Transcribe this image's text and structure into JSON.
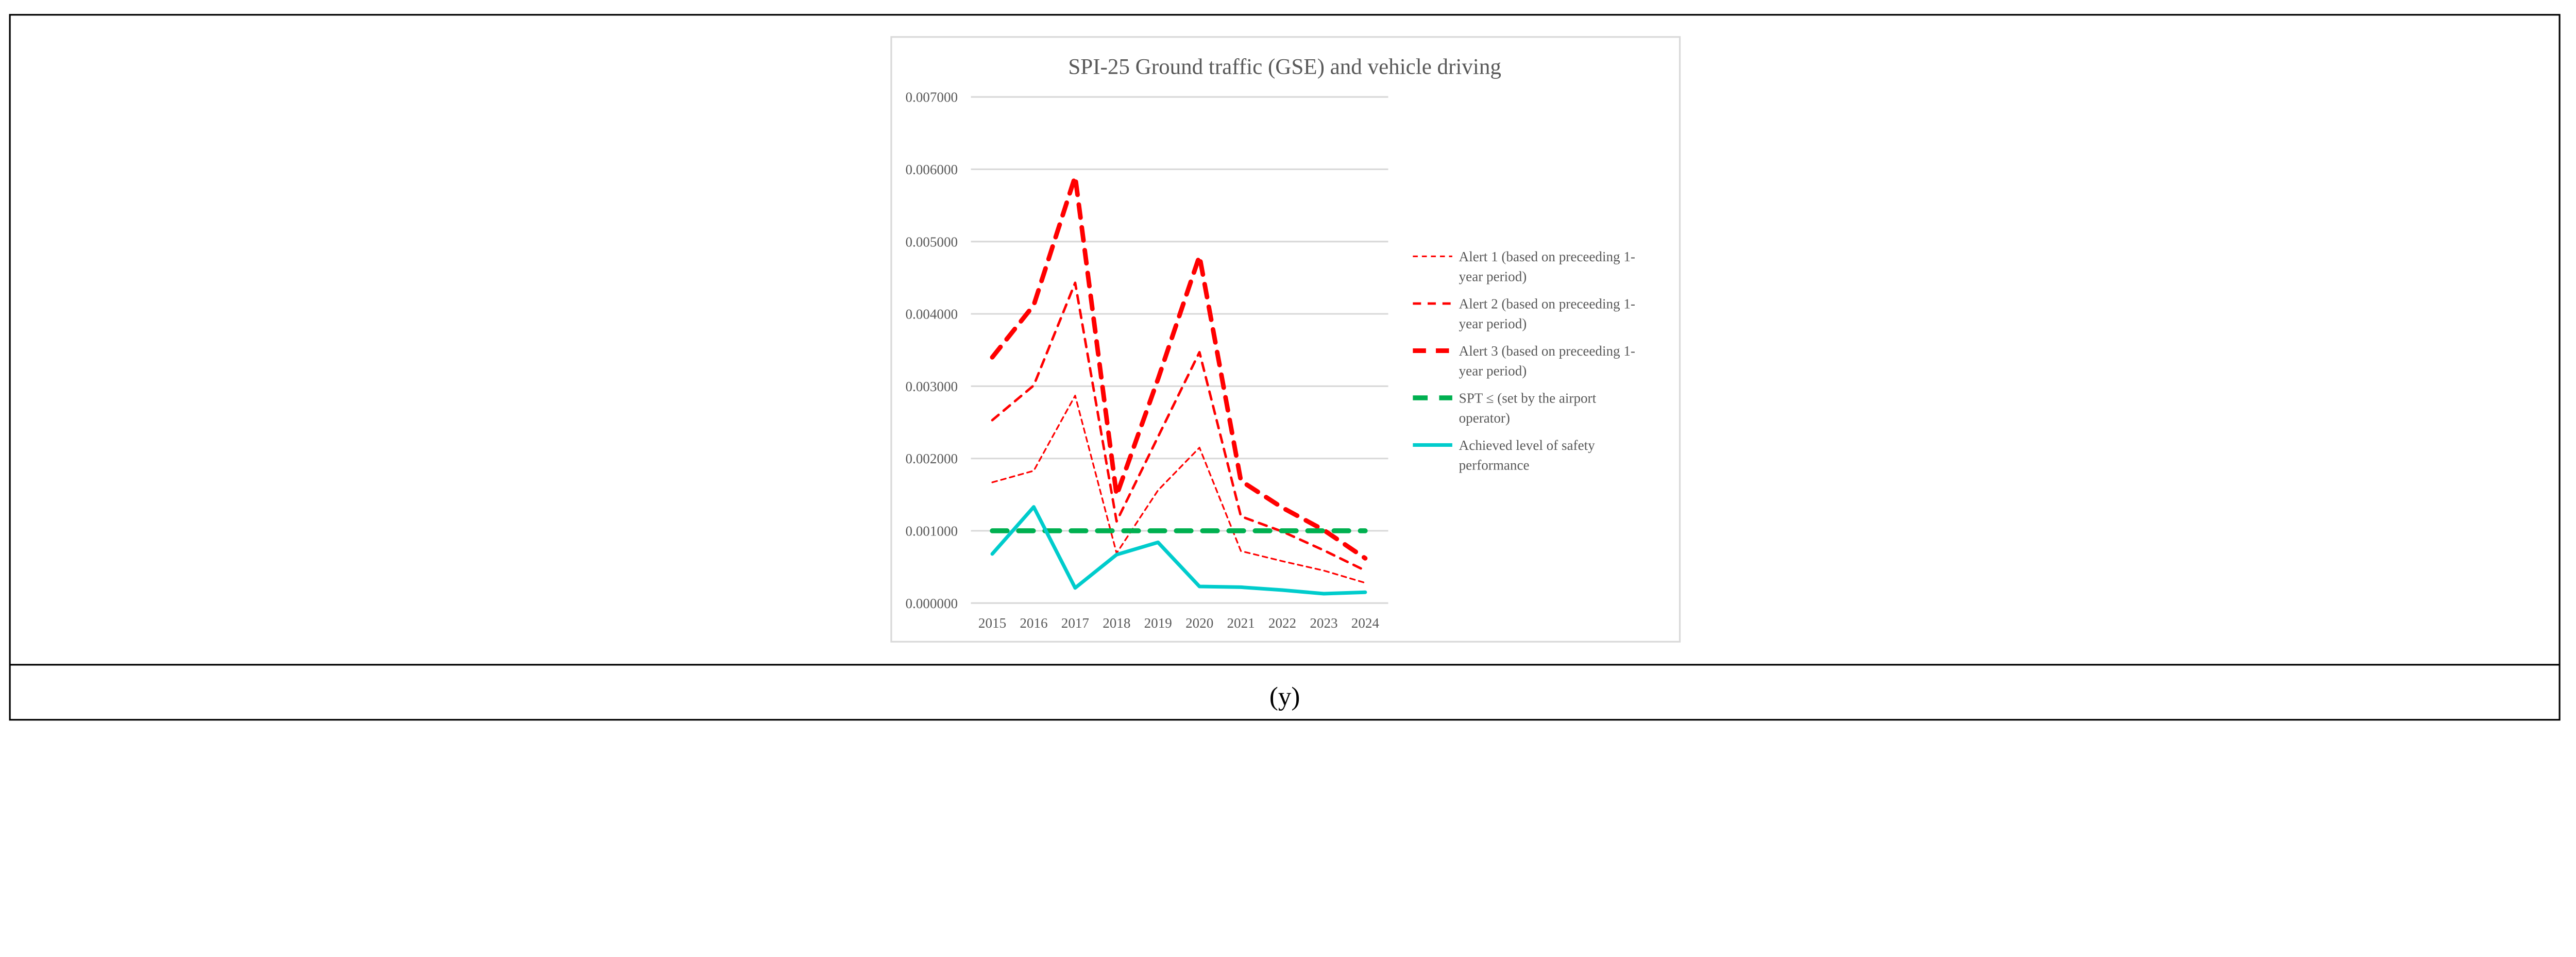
{
  "caption": "(y)",
  "chart_data": {
    "type": "line",
    "title": "SPI-25 Ground traffic (GSE) and vehicle driving",
    "xlabel": "",
    "ylabel": "",
    "categories": [
      "2015",
      "2016",
      "2017",
      "2018",
      "2019",
      "2020",
      "2021",
      "2022",
      "2023",
      "2024"
    ],
    "ylim": [
      0,
      0.007
    ],
    "yticks": [
      "0.000000",
      "0.001000",
      "0.002000",
      "0.003000",
      "0.004000",
      "0.005000",
      "0.006000",
      "0.007000"
    ],
    "grid": true,
    "legend_position": "right",
    "series": [
      {
        "name": "Alert 1 (based on preceeding 1-year period)",
        "legend_lines": [
          "Alert 1 (based on preceeding 1-",
          "year period)"
        ],
        "color": "#ff0000",
        "style": "dash-small",
        "values": [
          0.00167,
          0.00183,
          0.00287,
          0.00069,
          0.00156,
          0.00215,
          0.00072,
          0.00058,
          0.00045,
          0.00028
        ]
      },
      {
        "name": "Alert 2 (based on preceeding 1-year period)",
        "legend_lines": [
          "Alert 2 (based on preceeding 1-",
          "year period)"
        ],
        "color": "#ff0000",
        "style": "dash-medium",
        "values": [
          0.00253,
          0.00301,
          0.00443,
          0.00113,
          0.0023,
          0.00347,
          0.0012,
          0.00099,
          0.00073,
          0.00045
        ]
      },
      {
        "name": "Alert 3 (based on preceeding 1-year period)",
        "legend_lines": [
          "Alert 3 (based on preceeding 1-",
          "year period)"
        ],
        "color": "#ff0000",
        "style": "dash-large",
        "values": [
          0.0034,
          0.00412,
          0.0059,
          0.00149,
          0.0031,
          0.0048,
          0.00169,
          0.00132,
          0.00101,
          0.00062
        ]
      },
      {
        "name": "SPT ≤ (set by the airport operator)",
        "legend_lines": [
          "SPT ≤ (set by the airport",
          "operator)"
        ],
        "color": "#00b050",
        "style": "dash-green",
        "values": [
          0.001,
          0.001,
          0.001,
          0.001,
          0.001,
          0.001,
          0.001,
          0.001,
          0.001,
          0.001
        ]
      },
      {
        "name": "Achieved level of safety performance",
        "legend_lines": [
          "Achieved level of safety",
          "performance"
        ],
        "color": "#00cccc",
        "style": "solid",
        "values": [
          0.00068,
          0.00133,
          0.00021,
          0.00067,
          0.00084,
          0.00023,
          0.00022,
          0.00018,
          0.00013,
          0.00015
        ]
      }
    ]
  }
}
